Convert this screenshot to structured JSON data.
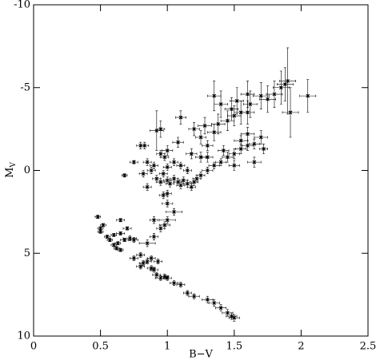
{
  "chart_data": {
    "type": "scatter",
    "xlabel": "B−V",
    "ylabel": {
      "main": "M",
      "sub": "V"
    },
    "xlim": [
      0,
      2.5
    ],
    "xticks": [
      0,
      0.5,
      1,
      1.5,
      2,
      2.5
    ],
    "ylim": [
      10,
      -10
    ],
    "yticks": [
      -10,
      -5,
      0,
      5,
      10
    ],
    "color": "#000000",
    "series": [
      {
        "x": [
          0.48,
          0.5,
          0.5,
          0.52,
          0.55,
          0.57,
          0.6,
          0.62,
          0.63,
          0.65,
          0.6,
          0.65,
          0.68,
          0.7,
          0.72,
          0.65,
          0.75,
          0.8,
          0.82,
          0.85,
          0.8,
          0.88,
          0.9,
          0.92,
          0.95,
          0.98,
          1.0,
          1.05,
          1.1,
          1.15,
          1.2,
          1.3,
          1.35,
          1.4,
          1.45,
          1.48,
          1.5,
          0.85,
          0.9,
          0.95,
          1.0,
          0.75,
          0.88,
          0.93,
          1.05,
          1.0,
          0.98,
          0.9,
          0.85,
          0.85,
          0.9,
          0.92,
          0.95,
          0.97,
          1.0,
          1.02,
          1.05,
          1.08,
          1.1,
          1.12,
          1.15,
          1.18,
          1.2,
          1.22,
          1.0,
          1.05,
          0.95,
          0.98,
          1.1,
          1.15,
          1.25,
          1.3,
          1.35,
          1.4,
          1.45,
          1.5,
          1.55,
          1.6,
          1.65,
          1.42,
          1.3,
          0.8,
          0.83,
          0.92,
          0.95,
          0.68,
          0.75,
          1.0,
          0.97,
          1.2,
          1.25,
          1.3,
          1.35,
          1.1,
          1.28,
          1.38,
          1.45,
          1.5,
          1.55,
          1.6,
          1.48,
          1.4,
          1.52,
          1.62,
          1.7,
          1.75,
          1.8,
          1.85,
          1.88,
          1.9,
          1.92,
          2.05,
          1.7,
          1.6,
          1.55,
          1.72,
          1.65,
          1.5,
          1.35,
          1.08,
          1.0,
          0.82,
          0.88,
          1.18,
          1.25,
          1.6
        ],
        "values": [
          2.8,
          3.5,
          3.7,
          3.3,
          4.0,
          4.2,
          4.5,
          4.7,
          4.4,
          4.8,
          3.9,
          3.8,
          4.2,
          3.5,
          4.1,
          3.0,
          5.3,
          5.1,
          5.6,
          5.5,
          5.8,
          5.9,
          6.0,
          6.3,
          6.5,
          6.4,
          6.5,
          6.8,
          6.9,
          7.4,
          7.6,
          7.8,
          8.0,
          8.3,
          8.6,
          8.8,
          8.9,
          4.4,
          4.0,
          3.5,
          3.0,
          4.2,
          5.3,
          5.5,
          2.5,
          2.0,
          3.3,
          3.0,
          1.0,
          -0.5,
          -0.3,
          0.5,
          0.7,
          0.2,
          0.6,
          0.8,
          0.5,
          0.7,
          0.9,
          0.6,
          0.8,
          1.0,
          0.7,
          0.5,
          -0.2,
          -0.5,
          -1.0,
          -0.8,
          -0.3,
          0.0,
          0.3,
          0.0,
          -0.3,
          -0.5,
          -0.8,
          -1.0,
          -1.3,
          -1.5,
          -1.6,
          -1.2,
          -0.8,
          -1.5,
          -1.5,
          -2.4,
          -2.5,
          0.3,
          -0.5,
          1.4,
          1.5,
          -2.5,
          -2.0,
          -1.5,
          -2.3,
          -3.2,
          -2.7,
          -2.8,
          -3.0,
          -3.3,
          -3.5,
          -3.5,
          -3.7,
          -4.0,
          -4.2,
          -4.0,
          -4.5,
          -4.3,
          -4.6,
          -5.0,
          -5.2,
          -5.4,
          -3.5,
          -4.5,
          -2.0,
          -2.2,
          -1.8,
          -1.3,
          -0.5,
          -0.3,
          -4.5,
          -1.7,
          -1.2,
          0.2,
          0.0,
          -1.0,
          -0.8,
          -4.6
        ],
        "xerr": [
          0.02,
          0.02,
          0.02,
          0.02,
          0.02,
          0.02,
          0.02,
          0.02,
          0.02,
          0.02,
          0.02,
          0.03,
          0.03,
          0.03,
          0.05,
          0.03,
          0.03,
          0.03,
          0.03,
          0.03,
          0.03,
          0.03,
          0.03,
          0.03,
          0.04,
          0.03,
          0.03,
          0.03,
          0.03,
          0.03,
          0.04,
          0.04,
          0.04,
          0.04,
          0.04,
          0.04,
          0.04,
          0.06,
          0.03,
          0.03,
          0.06,
          0.03,
          0.03,
          0.03,
          0.06,
          0.04,
          0.04,
          0.03,
          0.03,
          0.03,
          0.03,
          0.03,
          0.03,
          0.03,
          0.03,
          0.03,
          0.03,
          0.03,
          0.03,
          0.03,
          0.03,
          0.03,
          0.03,
          0.03,
          0.03,
          0.03,
          0.03,
          0.03,
          0.03,
          0.03,
          0.03,
          0.04,
          0.04,
          0.04,
          0.04,
          0.04,
          0.04,
          0.04,
          0.04,
          0.04,
          0.04,
          0.03,
          0.03,
          0.05,
          0.03,
          0.02,
          0.03,
          0.03,
          0.03,
          0.04,
          0.04,
          0.04,
          0.05,
          0.04,
          0.05,
          0.05,
          0.05,
          0.05,
          0.05,
          0.05,
          0.05,
          0.05,
          0.05,
          0.05,
          0.06,
          0.06,
          0.06,
          0.06,
          0.06,
          0.06,
          0.06,
          0.06,
          0.05,
          0.05,
          0.05,
          0.03,
          0.05,
          0.04,
          0.05,
          0.04,
          0.04,
          0.03,
          0.03,
          0.04,
          0.04,
          0.05
        ],
        "yerr": [
          0.1,
          0.1,
          0.1,
          0.1,
          0.1,
          0.1,
          0.1,
          0.1,
          0.1,
          0.1,
          0.1,
          0.1,
          0.1,
          0.1,
          0.15,
          0.1,
          0.15,
          0.15,
          0.15,
          0.15,
          0.15,
          0.15,
          0.15,
          0.15,
          0.15,
          0.15,
          0.15,
          0.15,
          0.15,
          0.15,
          0.15,
          0.2,
          0.2,
          0.2,
          0.2,
          0.2,
          0.2,
          0.2,
          0.2,
          0.2,
          0.2,
          0.15,
          0.15,
          0.15,
          0.2,
          0.2,
          0.2,
          0.2,
          0.2,
          0.2,
          0.2,
          0.2,
          0.2,
          0.2,
          0.2,
          0.2,
          0.2,
          0.2,
          0.2,
          0.2,
          0.2,
          0.2,
          0.2,
          0.2,
          0.2,
          0.2,
          0.2,
          0.2,
          0.2,
          0.2,
          0.2,
          0.2,
          0.2,
          0.2,
          0.3,
          0.3,
          0.3,
          0.3,
          0.3,
          0.3,
          0.3,
          0.2,
          0.2,
          1.2,
          0.5,
          0.1,
          0.1,
          0.2,
          0.2,
          0.4,
          0.4,
          0.3,
          0.5,
          0.4,
          0.5,
          0.6,
          0.6,
          0.6,
          0.7,
          0.7,
          0.7,
          0.8,
          0.8,
          0.8,
          0.8,
          0.8,
          0.8,
          1.0,
          1.0,
          2.0,
          1.5,
          1.0,
          0.4,
          0.4,
          0.3,
          0.3,
          0.3,
          0.3,
          0.9,
          0.3,
          0.3,
          0.2,
          0.2,
          0.3,
          0.3,
          0.8
        ]
      }
    ]
  }
}
